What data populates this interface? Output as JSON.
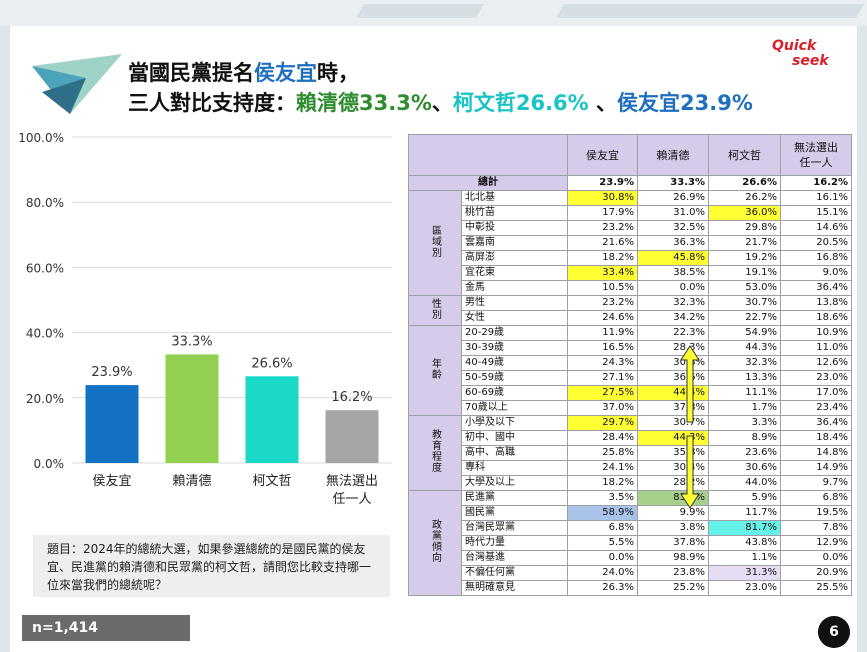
{
  "title": {
    "line1_a": "當國民黨提名",
    "line1_b": "侯友宜",
    "line1_c": "時，",
    "line2_a": "三人對比支持度：",
    "line2_b": "賴清德33.3%",
    "line2_c": "、",
    "line2_d": "柯文哲26.6%",
    "line2_e": " 、",
    "line2_f": "侯友宜23.9%"
  },
  "logo": {
    "line1": "Quick",
    "line2": "seek"
  },
  "chart_data": {
    "type": "bar",
    "categories": [
      "侯友宜",
      "賴清德",
      "柯文哲",
      "無法選出任一人"
    ],
    "category_lines": [
      [
        "侯友宜"
      ],
      [
        "賴清德"
      ],
      [
        "柯文哲"
      ],
      [
        "無法選出",
        "任一人"
      ]
    ],
    "values": [
      23.9,
      33.3,
      26.6,
      16.2
    ],
    "value_labels": [
      "23.9%",
      "33.3%",
      "26.6%",
      "16.2%"
    ],
    "colors": [
      "#1372c4",
      "#92d050",
      "#1ad9c8",
      "#a6a6a6"
    ],
    "ylim": [
      0,
      100
    ],
    "yticks": [
      0,
      20,
      40,
      60,
      80,
      100
    ],
    "ytick_labels": [
      "0.0%",
      "20.0%",
      "40.0%",
      "60.0%",
      "80.0%",
      "100.0%"
    ],
    "grid": true
  },
  "question": "題目：2024年的總統大選，如果參選總統的是國民黨的侯友宜、民進黨的賴清德和民眾黨的柯文哲，請問您比較支持哪一位來當我們的總統呢？",
  "sample": "n=1,414",
  "page_number": "6",
  "table": {
    "headers": [
      "侯友宜",
      "賴清德",
      "柯文哲",
      "無法選出任一人"
    ],
    "total": {
      "label": "總計",
      "values": [
        "23.9%",
        "33.3%",
        "26.6%",
        "16.2%"
      ]
    },
    "groups": [
      {
        "name": "區域別",
        "rows": [
          {
            "label": "北北基",
            "values": [
              "30.8%",
              "26.9%",
              "26.2%",
              "16.1%"
            ],
            "hl": [
              "yellow",
              "",
              "",
              ""
            ]
          },
          {
            "label": "桃竹苗",
            "values": [
              "17.9%",
              "31.0%",
              "36.0%",
              "15.1%"
            ],
            "hl": [
              "",
              "",
              "yellow",
              ""
            ]
          },
          {
            "label": "中彰投",
            "values": [
              "23.2%",
              "32.5%",
              "29.8%",
              "14.6%"
            ],
            "hl": [
              "",
              "",
              "",
              ""
            ]
          },
          {
            "label": "雲嘉南",
            "values": [
              "21.6%",
              "36.3%",
              "21.7%",
              "20.5%"
            ],
            "hl": [
              "",
              "",
              "",
              ""
            ]
          },
          {
            "label": "高屏澎",
            "values": [
              "18.2%",
              "45.8%",
              "19.2%",
              "16.8%"
            ],
            "hl": [
              "",
              "yellow",
              "",
              ""
            ]
          },
          {
            "label": "宜花東",
            "values": [
              "33.4%",
              "38.5%",
              "19.1%",
              "9.0%"
            ],
            "hl": [
              "yellow",
              "",
              "",
              ""
            ]
          },
          {
            "label": "金馬",
            "values": [
              "10.5%",
              "0.0%",
              "53.0%",
              "36.4%"
            ],
            "hl": [
              "",
              "",
              "",
              ""
            ]
          }
        ]
      },
      {
        "name": "性別",
        "rows": [
          {
            "label": "男性",
            "values": [
              "23.2%",
              "32.3%",
              "30.7%",
              "13.8%"
            ],
            "hl": [
              "",
              "",
              "",
              ""
            ]
          },
          {
            "label": "女性",
            "values": [
              "24.6%",
              "34.2%",
              "22.7%",
              "18.6%"
            ],
            "hl": [
              "",
              "",
              "",
              ""
            ]
          }
        ]
      },
      {
        "name": "年齡",
        "rows": [
          {
            "label": "20-29歲",
            "values": [
              "11.9%",
              "22.3%",
              "54.9%",
              "10.9%"
            ],
            "hl": [
              "",
              "",
              "",
              ""
            ]
          },
          {
            "label": "30-39歲",
            "values": [
              "16.5%",
              "28.3%",
              "44.3%",
              "11.0%"
            ],
            "hl": [
              "",
              "",
              "",
              ""
            ]
          },
          {
            "label": "40-49歲",
            "values": [
              "24.3%",
              "30.8%",
              "32.3%",
              "12.6%"
            ],
            "hl": [
              "",
              "",
              "",
              ""
            ]
          },
          {
            "label": "50-59歲",
            "values": [
              "27.1%",
              "36.6%",
              "13.3%",
              "23.0%"
            ],
            "hl": [
              "",
              "",
              "",
              ""
            ]
          },
          {
            "label": "60-69歲",
            "values": [
              "27.5%",
              "44.4%",
              "11.1%",
              "17.0%"
            ],
            "hl": [
              "yellow",
              "yellow",
              "",
              ""
            ]
          },
          {
            "label": "70歲以上",
            "values": [
              "37.0%",
              "37.8%",
              "1.7%",
              "23.4%"
            ],
            "hl": [
              "",
              "",
              "",
              ""
            ]
          }
        ]
      },
      {
        "name": "教育程度",
        "rows": [
          {
            "label": "小學及以下",
            "values": [
              "29.7%",
              "30.7%",
              "3.3%",
              "36.4%"
            ],
            "hl": [
              "yellow",
              "",
              "",
              ""
            ]
          },
          {
            "label": "初中、國中",
            "values": [
              "28.4%",
              "44.3%",
              "8.9%",
              "18.4%"
            ],
            "hl": [
              "",
              "yellow",
              "",
              ""
            ]
          },
          {
            "label": "高中、高職",
            "values": [
              "25.8%",
              "35.8%",
              "23.6%",
              "14.8%"
            ],
            "hl": [
              "",
              "",
              "",
              ""
            ]
          },
          {
            "label": "專科",
            "values": [
              "24.1%",
              "30.4%",
              "30.6%",
              "14.9%"
            ],
            "hl": [
              "",
              "",
              "",
              ""
            ]
          },
          {
            "label": "大學及以上",
            "values": [
              "18.2%",
              "28.2%",
              "44.0%",
              "9.7%"
            ],
            "hl": [
              "",
              "",
              "",
              ""
            ]
          }
        ]
      },
      {
        "name": "政黨傾向",
        "rows": [
          {
            "label": "民進黨",
            "values": [
              "3.5%",
              "83.8%",
              "5.9%",
              "6.8%"
            ],
            "hl": [
              "",
              "green",
              "",
              ""
            ]
          },
          {
            "label": "國民黨",
            "values": [
              "58.9%",
              "9.9%",
              "11.7%",
              "19.5%"
            ],
            "hl": [
              "blue",
              "",
              "",
              ""
            ]
          },
          {
            "label": "台灣民眾黨",
            "values": [
              "6.8%",
              "3.8%",
              "81.7%",
              "7.8%"
            ],
            "hl": [
              "",
              "",
              "cyan",
              ""
            ]
          },
          {
            "label": "時代力量",
            "values": [
              "5.5%",
              "37.8%",
              "43.8%",
              "12.9%"
            ],
            "hl": [
              "",
              "",
              "",
              ""
            ]
          },
          {
            "label": "台灣基進",
            "values": [
              "0.0%",
              "98.9%",
              "1.1%",
              "0.0%"
            ],
            "hl": [
              "",
              "",
              "",
              ""
            ]
          },
          {
            "label": "不偏任何黨",
            "values": [
              "24.0%",
              "23.8%",
              "31.3%",
              "20.9%"
            ],
            "hl": [
              "",
              "",
              "lav",
              ""
            ]
          },
          {
            "label": "無明確意見",
            "values": [
              "26.3%",
              "25.2%",
              "23.0%",
              "25.5%"
            ],
            "hl": [
              "",
              "",
              "",
              ""
            ]
          }
        ]
      }
    ]
  }
}
